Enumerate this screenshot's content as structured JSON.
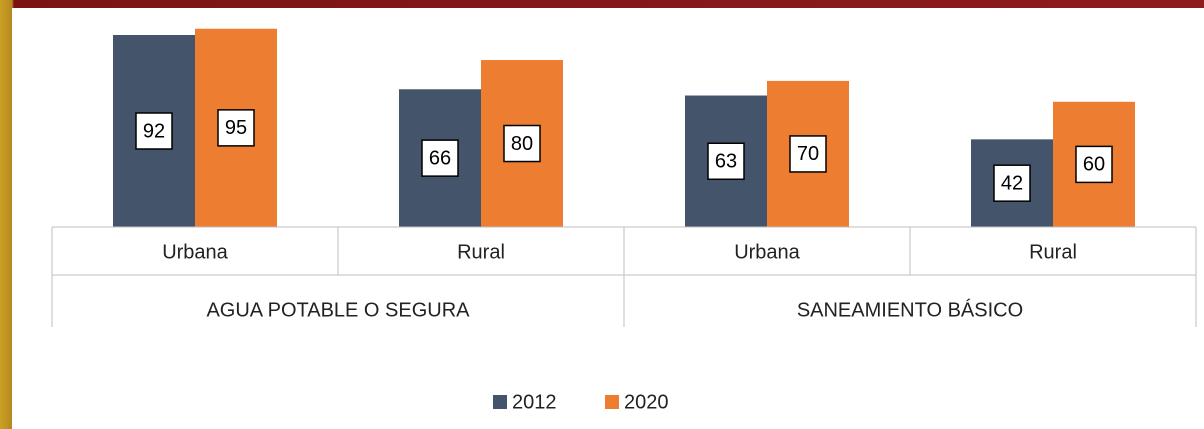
{
  "chart_data": {
    "type": "bar",
    "categories": [
      "Urbana",
      "Rural",
      "Urbana",
      "Rural"
    ],
    "groups": [
      "AGUA POTABLE O SEGURA",
      "SANEAMIENTO BÁSICO"
    ],
    "series": [
      {
        "name": "2012",
        "color": "#44546a",
        "values": [
          92,
          66,
          63,
          42
        ]
      },
      {
        "name": "2020",
        "color": "#ed7d31",
        "values": [
          95,
          80,
          70,
          60
        ]
      }
    ],
    "legend": "bottom"
  }
}
